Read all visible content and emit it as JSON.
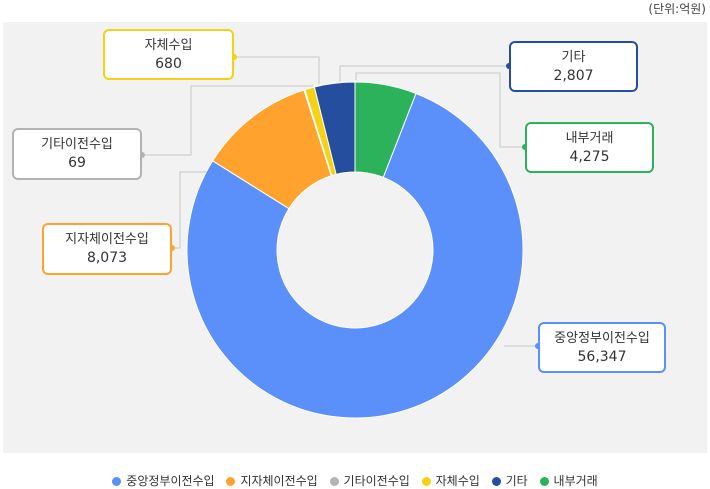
{
  "unit_label": "(단위:억원)",
  "chart_data": {
    "type": "pie",
    "title": "",
    "categories": [
      "중앙정부이전수입",
      "지자체이전수입",
      "기타이전수입",
      "자체수입",
      "기타",
      "내부거래"
    ],
    "values": [
      56347,
      8073,
      69,
      680,
      2807,
      4275
    ],
    "value_labels": [
      "56,347",
      "8,073",
      "69",
      "680",
      "2,807",
      "4,275"
    ],
    "colors": [
      "#5b8ff9",
      "#ffa22e",
      "#b3b3b3",
      "#f5d214",
      "#254f9e",
      "#2bb25b"
    ],
    "order_clockwise_from_top": [
      5,
      0,
      1,
      2,
      3,
      4
    ],
    "legend_position": "bottom",
    "donut": true
  }
}
